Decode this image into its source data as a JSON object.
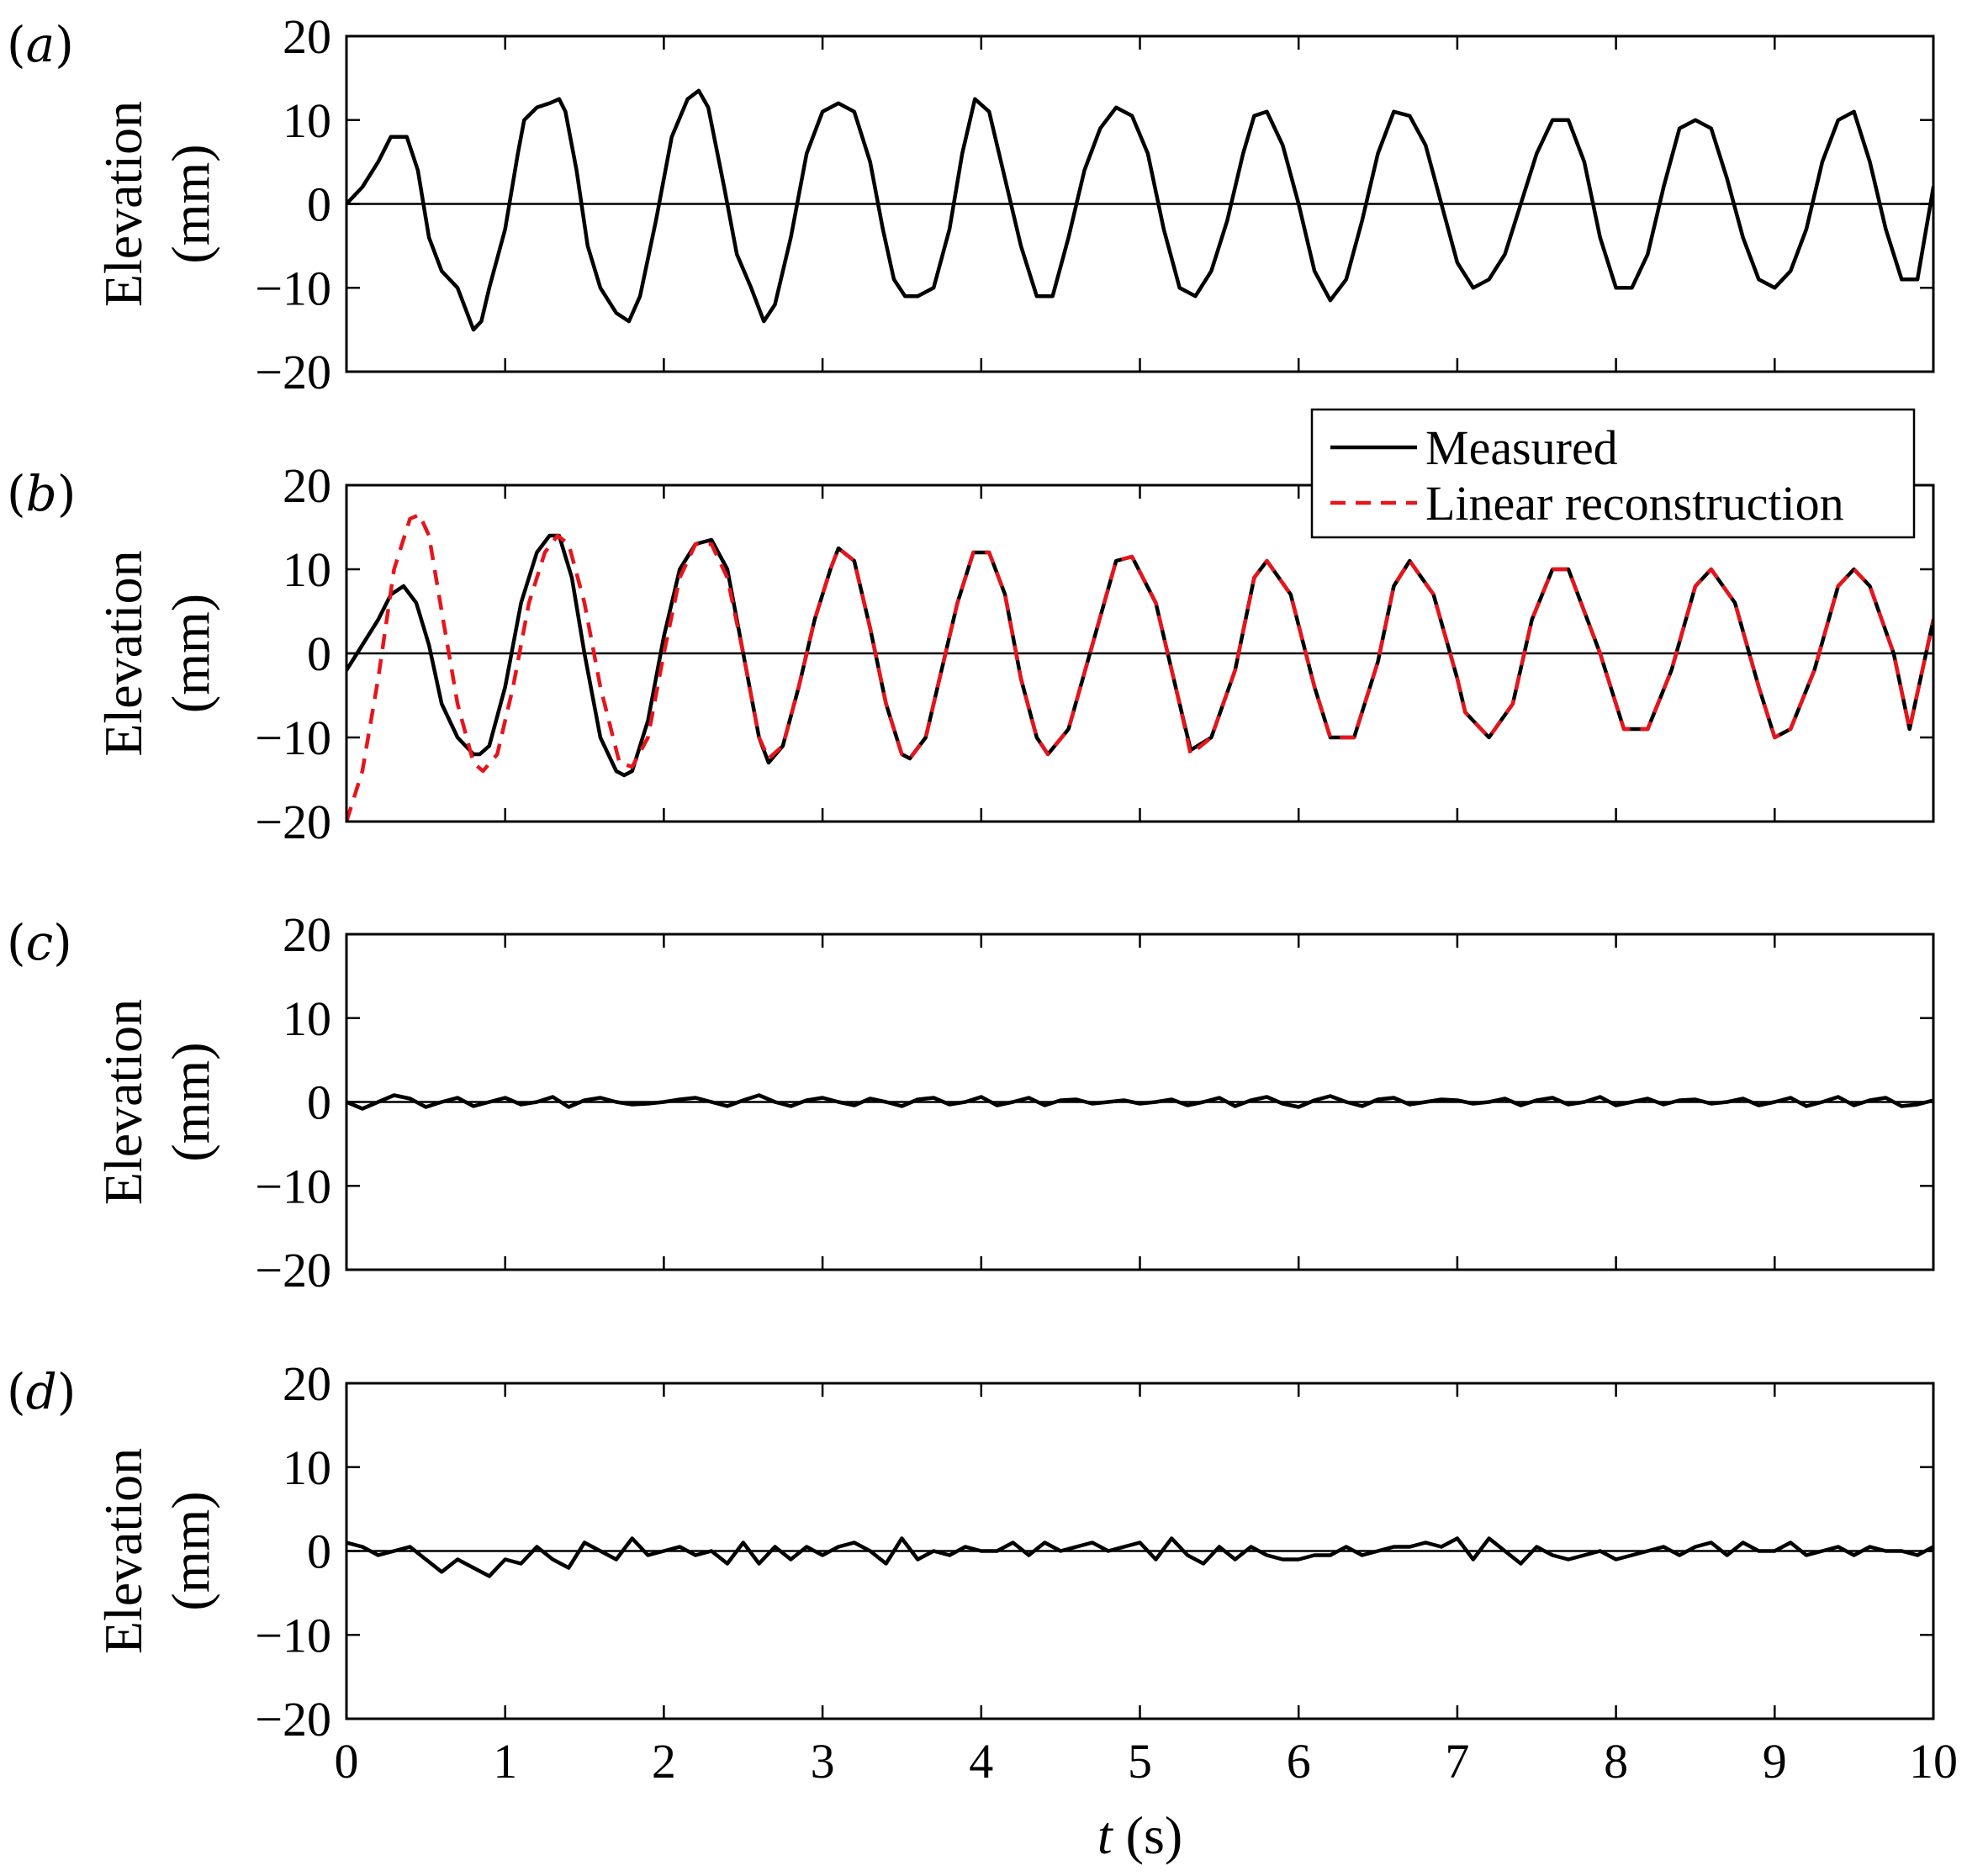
{
  "colors": {
    "measured": "#000000",
    "linear": "#e8141c",
    "axis": "#000000"
  },
  "chart_data": [
    {
      "type": "line",
      "panel_label": "a",
      "ylabel_line1": "Elevation",
      "ylabel_line2": "(mm)",
      "xlim": [
        0,
        10
      ],
      "ylim": [
        -20,
        20
      ],
      "yticks": [
        "20",
        "10",
        "0",
        "−10",
        "−20"
      ],
      "grid": false,
      "zero_line": true,
      "series": [
        {
          "name": "Measured",
          "style": "solid",
          "x": [
            0,
            0.1,
            0.2,
            0.28,
            0.38,
            0.45,
            0.52,
            0.6,
            0.7,
            0.8,
            0.85,
            0.9,
            1.0,
            1.08,
            1.12,
            1.2,
            1.28,
            1.34,
            1.38,
            1.45,
            1.52,
            1.6,
            1.7,
            1.78,
            1.85,
            1.95,
            2.05,
            2.15,
            2.22,
            2.28,
            2.38,
            2.46,
            2.55,
            2.63,
            2.7,
            2.8,
            2.9,
            3.0,
            3.1,
            3.2,
            3.3,
            3.38,
            3.45,
            3.52,
            3.6,
            3.7,
            3.8,
            3.88,
            3.96,
            4.05,
            4.15,
            4.25,
            4.35,
            4.45,
            4.55,
            4.65,
            4.75,
            4.85,
            4.95,
            5.05,
            5.15,
            5.25,
            5.35,
            5.45,
            5.55,
            5.65,
            5.72,
            5.8,
            5.9,
            6.0,
            6.1,
            6.2,
            6.3,
            6.4,
            6.5,
            6.6,
            6.7,
            6.8,
            6.9,
            7.0,
            7.1,
            7.2,
            7.3,
            7.4,
            7.5,
            7.6,
            7.7,
            7.8,
            7.9,
            8.0,
            8.1,
            8.2,
            8.3,
            8.4,
            8.5,
            8.6,
            8.7,
            8.8,
            8.9,
            9.0,
            9.1,
            9.2,
            9.3,
            9.4,
            9.5,
            9.6,
            9.7,
            9.8,
            9.9,
            10.0
          ],
          "y": [
            0,
            2,
            5,
            8,
            8,
            4,
            -4,
            -8,
            -10,
            -15,
            -14,
            -10,
            -3,
            6,
            10,
            11.5,
            12,
            12.5,
            11,
            4,
            -5,
            -10,
            -13,
            -14,
            -11,
            -2,
            8,
            12.5,
            13.5,
            11.5,
            2,
            -6,
            -10,
            -14,
            -12,
            -4,
            6,
            11,
            12,
            11,
            5,
            -3,
            -9,
            -11,
            -11,
            -10,
            -3,
            6,
            12.5,
            11,
            3,
            -5,
            -11,
            -11,
            -4,
            4,
            9,
            11.5,
            10.5,
            6,
            -3,
            -10,
            -11,
            -8,
            -2,
            6,
            10.5,
            11,
            7,
            0,
            -8,
            -11.5,
            -9,
            -2,
            6,
            11,
            10.5,
            7,
            0,
            -7,
            -10,
            -9,
            -6,
            0,
            6,
            10,
            10,
            5,
            -4,
            -10,
            -10,
            -6,
            2,
            9,
            10,
            9,
            3,
            -4,
            -9,
            -10,
            -8,
            -3,
            5,
            10,
            11,
            5,
            -3,
            -9,
            -9,
            2
          ]
        }
      ]
    },
    {
      "type": "line",
      "panel_label": "b",
      "ylabel_line1": "Elevation",
      "ylabel_line2": "(mm)",
      "xlim": [
        0,
        10
      ],
      "ylim": [
        -20,
        20
      ],
      "yticks": [
        "20",
        "10",
        "0",
        "−10",
        "−20"
      ],
      "grid": false,
      "zero_line": true,
      "legend": {
        "position": "top-right",
        "entries": [
          "Measured",
          "Linear reconstruction"
        ]
      },
      "series": [
        {
          "name": "Measured",
          "style": "solid",
          "x": [
            0,
            0.1,
            0.2,
            0.28,
            0.36,
            0.44,
            0.52,
            0.6,
            0.7,
            0.8,
            0.84,
            0.9,
            1.0,
            1.1,
            1.2,
            1.28,
            1.34,
            1.42,
            1.5,
            1.6,
            1.7,
            1.75,
            1.8,
            1.9,
            2.0,
            2.1,
            2.2,
            2.3,
            2.4,
            2.5,
            2.6,
            2.66,
            2.75,
            2.85,
            2.95,
            3.05,
            3.1,
            3.2,
            3.3,
            3.4,
            3.5,
            3.55,
            3.65,
            3.75,
            3.85,
            3.95,
            4.05,
            4.15,
            4.25,
            4.35,
            4.42,
            4.55,
            4.7,
            4.85,
            4.95,
            5.1,
            5.25,
            5.32,
            5.45,
            5.6,
            5.72,
            5.8,
            5.95,
            6.1,
            6.2,
            6.35,
            6.5,
            6.6,
            6.7,
            6.85,
            7.0,
            7.05,
            7.2,
            7.35,
            7.47,
            7.6,
            7.7,
            7.9,
            8.05,
            8.2,
            8.35,
            8.5,
            8.6,
            8.75,
            8.9,
            9.0,
            9.1,
            9.25,
            9.4,
            9.5,
            9.6,
            9.75,
            9.85,
            10.0
          ],
          "y": [
            -2,
            1,
            4,
            7,
            8,
            6,
            1,
            -6,
            -10,
            -12,
            -12,
            -11,
            -4,
            6,
            12,
            14,
            14,
            9,
            0,
            -10,
            -14,
            -14.5,
            -14,
            -8,
            2,
            10,
            13,
            13.5,
            10,
            0,
            -10,
            -13,
            -11,
            -4,
            4,
            10,
            12.5,
            11,
            3,
            -6,
            -12,
            -12.5,
            -10,
            -2,
            6,
            12,
            12,
            7,
            -3,
            -10,
            -12,
            -9,
            1,
            11,
            11.5,
            6,
            -6,
            -11.5,
            -10,
            -2,
            9,
            11,
            7,
            -4,
            -10,
            -10,
            -1,
            8,
            11,
            7,
            -3,
            -7,
            -10,
            -6,
            4,
            10,
            10,
            0,
            -9,
            -9,
            -2,
            8,
            10,
            6,
            -4,
            -10,
            -9,
            -2,
            8,
            10,
            8,
            0,
            -9,
            4
          ]
        },
        {
          "name": "Linear reconstruction",
          "style": "dashed",
          "x": [
            0,
            0.1,
            0.2,
            0.3,
            0.4,
            0.46,
            0.52,
            0.6,
            0.7,
            0.8,
            0.86,
            0.95,
            1.05,
            1.15,
            1.25,
            1.33,
            1.4,
            1.5,
            1.6,
            1.72,
            1.8,
            1.9,
            2.0,
            2.1,
            2.2,
            2.3,
            2.4,
            2.5,
            2.6,
            2.66,
            2.75,
            2.85,
            2.95,
            3.05,
            3.1,
            3.2,
            3.3,
            3.4,
            3.5,
            3.55,
            3.65,
            3.75,
            3.85,
            3.95,
            4.05,
            4.15,
            4.25,
            4.35,
            4.42,
            4.55,
            4.7,
            4.85,
            4.95,
            5.1,
            5.25,
            5.32,
            5.45,
            5.6,
            5.72,
            5.8,
            5.95,
            6.1,
            6.2,
            6.35,
            6.5,
            6.6,
            6.7,
            6.85,
            7.0,
            7.05,
            7.2,
            7.35,
            7.47,
            7.6,
            7.7,
            7.9,
            8.05,
            8.2,
            8.35,
            8.5,
            8.6,
            8.75,
            8.9,
            9.0,
            9.1,
            9.25,
            9.4,
            9.5,
            9.6,
            9.75,
            9.85,
            10.0
          ],
          "y": [
            -20,
            -14,
            -3,
            10,
            16,
            16.5,
            14,
            5,
            -6,
            -13,
            -14,
            -12,
            -4,
            6,
            12,
            14,
            13,
            6,
            -4,
            -13,
            -13.5,
            -10,
            0,
            9,
            13,
            13,
            9,
            0,
            -10,
            -12.5,
            -11,
            -4,
            4,
            10,
            12.5,
            11,
            3,
            -6,
            -12,
            -12.5,
            -10,
            -2,
            6,
            12,
            12,
            7,
            -3,
            -10,
            -12,
            -9,
            1,
            11,
            11.5,
            6,
            -6,
            -12,
            -10,
            -2,
            9,
            11,
            7,
            -4,
            -10,
            -10,
            -1,
            8,
            11,
            7,
            -3,
            -7,
            -10,
            -6,
            4,
            10,
            10,
            0,
            -9,
            -9,
            -2,
            8,
            10,
            6,
            -4,
            -10,
            -9,
            -2,
            8,
            10,
            8,
            0,
            -9,
            4
          ]
        }
      ]
    },
    {
      "type": "line",
      "panel_label": "c",
      "ylabel_line1": "Elevation",
      "ylabel_line2": "(mm)",
      "xlim": [
        0,
        10
      ],
      "ylim": [
        -20,
        20
      ],
      "yticks": [
        "20",
        "10",
        "0",
        "−10",
        "−20"
      ],
      "grid": false,
      "zero_line": true,
      "series": [
        {
          "name": "Measured",
          "style": "solid",
          "x": [
            0,
            0.1,
            0.2,
            0.3,
            0.4,
            0.5,
            0.6,
            0.7,
            0.8,
            0.9,
            1.0,
            1.1,
            1.2,
            1.3,
            1.4,
            1.5,
            1.6,
            1.7,
            1.8,
            1.9,
            2.0,
            2.1,
            2.2,
            2.3,
            2.4,
            2.5,
            2.6,
            2.7,
            2.8,
            2.9,
            3.0,
            3.1,
            3.2,
            3.3,
            3.4,
            3.5,
            3.6,
            3.7,
            3.8,
            3.9,
            4.0,
            4.1,
            4.2,
            4.3,
            4.4,
            4.5,
            4.6,
            4.7,
            4.8,
            4.9,
            5.0,
            5.1,
            5.2,
            5.3,
            5.4,
            5.5,
            5.6,
            5.7,
            5.8,
            5.9,
            6.0,
            6.1,
            6.2,
            6.3,
            6.4,
            6.5,
            6.6,
            6.7,
            6.8,
            6.9,
            7.0,
            7.1,
            7.2,
            7.3,
            7.4,
            7.5,
            7.6,
            7.7,
            7.8,
            7.9,
            8.0,
            8.1,
            8.2,
            8.3,
            8.4,
            8.5,
            8.6,
            8.7,
            8.8,
            8.9,
            9.0,
            9.1,
            9.2,
            9.3,
            9.4,
            9.5,
            9.6,
            9.7,
            9.8,
            9.9,
            10.0
          ],
          "y": [
            0,
            -0.8,
            0,
            0.8,
            0.4,
            -0.6,
            0,
            0.5,
            -0.5,
            0,
            0.5,
            -0.3,
            0,
            0.6,
            -0.6,
            0.2,
            0.5,
            0,
            -0.3,
            -0.2,
            0,
            0.3,
            0.5,
            0,
            -0.5,
            0.2,
            0.8,
            0,
            -0.5,
            0.2,
            0.5,
            0,
            -0.4,
            0.4,
            0,
            -0.5,
            0.3,
            0.5,
            -0.3,
            0,
            0.6,
            -0.4,
            0,
            0.5,
            -0.4,
            0.2,
            0.3,
            -0.2,
            0,
            0.2,
            -0.2,
            0,
            0.3,
            -0.4,
            0,
            0.5,
            -0.5,
            0.2,
            0.6,
            -0.2,
            -0.6,
            0.2,
            0.7,
            0,
            -0.5,
            0.3,
            0.5,
            -0.3,
            0,
            0.3,
            0.2,
            -0.2,
            0,
            0.4,
            -0.4,
            0.2,
            0.5,
            -0.3,
            0,
            0.6,
            -0.4,
            0,
            0.4,
            -0.3,
            0.2,
            0.3,
            -0.2,
            0,
            0.4,
            -0.4,
            0,
            0.5,
            -0.5,
            0,
            0.6,
            -0.4,
            0.2,
            0.5,
            -0.5,
            -0.3,
            0.2
          ]
        }
      ]
    },
    {
      "type": "line",
      "panel_label": "d",
      "ylabel_line1": "Elevation",
      "ylabel_line2": "(mm)",
      "xlim": [
        0,
        10
      ],
      "ylim": [
        -20,
        20
      ],
      "yticks": [
        "20",
        "10",
        "0",
        "−10",
        "−20"
      ],
      "grid": false,
      "zero_line": true,
      "xlabel_var": "t",
      "xlabel_unit": " (s)",
      "xticks": [
        "0",
        "1",
        "2",
        "3",
        "4",
        "5",
        "6",
        "7",
        "8",
        "9",
        "10"
      ],
      "series": [
        {
          "name": "Measured",
          "style": "solid",
          "x": [
            0,
            0.1,
            0.2,
            0.3,
            0.4,
            0.5,
            0.6,
            0.7,
            0.8,
            0.9,
            1.0,
            1.1,
            1.2,
            1.3,
            1.4,
            1.5,
            1.6,
            1.7,
            1.8,
            1.9,
            2.0,
            2.1,
            2.2,
            2.3,
            2.4,
            2.5,
            2.6,
            2.7,
            2.8,
            2.9,
            3.0,
            3.1,
            3.2,
            3.3,
            3.4,
            3.5,
            3.6,
            3.7,
            3.8,
            3.9,
            4.0,
            4.1,
            4.2,
            4.3,
            4.4,
            4.5,
            4.6,
            4.7,
            4.8,
            4.9,
            5.0,
            5.1,
            5.2,
            5.3,
            5.4,
            5.5,
            5.6,
            5.7,
            5.8,
            5.9,
            6.0,
            6.1,
            6.2,
            6.3,
            6.4,
            6.5,
            6.6,
            6.7,
            6.8,
            6.9,
            7.0,
            7.1,
            7.2,
            7.3,
            7.4,
            7.5,
            7.6,
            7.7,
            7.8,
            7.9,
            8.0,
            8.1,
            8.2,
            8.3,
            8.4,
            8.5,
            8.6,
            8.7,
            8.8,
            8.9,
            9.0,
            9.1,
            9.2,
            9.3,
            9.4,
            9.5,
            9.6,
            9.7,
            9.8,
            9.9,
            10.0
          ],
          "y": [
            1,
            0.5,
            -0.5,
            0,
            0.5,
            -1,
            -2.5,
            -1,
            -2,
            -3,
            -1,
            -1.5,
            0.5,
            -1,
            -2,
            1,
            0,
            -1,
            1.5,
            -0.5,
            0,
            0.5,
            -0.5,
            0,
            -1.5,
            1,
            -1.5,
            0.5,
            -1,
            0.5,
            -0.5,
            0.5,
            1,
            0,
            -1.5,
            1.5,
            -1,
            0,
            -0.5,
            0.5,
            0,
            0,
            1,
            -0.5,
            1,
            0,
            0.5,
            1,
            0,
            0.5,
            1,
            -1,
            1.5,
            -0.5,
            -1.5,
            0.5,
            -1,
            0.5,
            -0.5,
            -1,
            -1,
            -0.5,
            -0.5,
            0.5,
            -0.5,
            0,
            0.5,
            0.5,
            1,
            0.5,
            1.5,
            -1,
            1.5,
            0,
            -1.5,
            0.5,
            -0.5,
            -1,
            -0.5,
            0,
            -1,
            -0.5,
            0,
            0.5,
            -0.5,
            0.5,
            1,
            -0.5,
            1,
            0,
            0,
            1,
            -0.5,
            0,
            0.5,
            -0.5,
            0.5,
            0,
            0,
            -0.5,
            0.5
          ]
        }
      ]
    }
  ]
}
